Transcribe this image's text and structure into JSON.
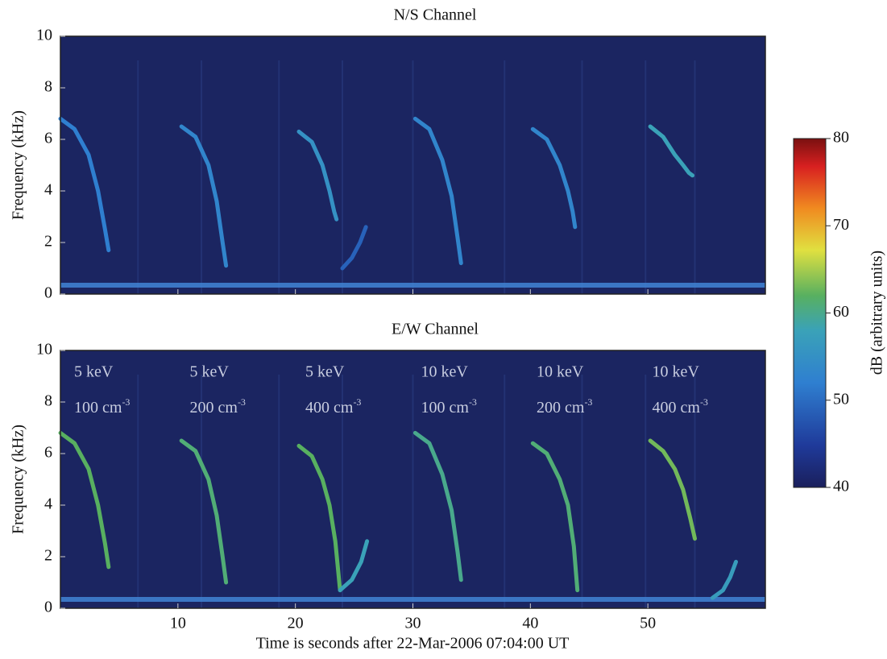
{
  "chart_data": [
    {
      "type": "spectrogram",
      "title": "N/S Channel",
      "ylabel": "Frequency (kHz)",
      "xlim": [
        0,
        60
      ],
      "ylim": [
        0,
        10
      ],
      "xticks": [
        10,
        20,
        30,
        40,
        50
      ],
      "yticks": [
        0,
        2,
        4,
        6,
        8,
        10
      ],
      "traces": [
        {
          "x": [
            0,
            1.2,
            2.4,
            3.2,
            3.8,
            4.1
          ],
          "y": [
            6.8,
            6.4,
            5.4,
            4.0,
            2.5,
            1.7
          ],
          "db": 52
        },
        {
          "x": [
            10.3,
            11.5,
            12.6,
            13.3,
            13.8,
            14.1
          ],
          "y": [
            6.5,
            6.1,
            5.0,
            3.6,
            2.0,
            1.1
          ],
          "db": 53
        },
        {
          "x": [
            20.3,
            21.4,
            22.3,
            22.9,
            23.3,
            23.5
          ],
          "y": [
            6.3,
            5.9,
            5.0,
            4.0,
            3.2,
            2.9
          ],
          "db": 55
        },
        {
          "x": [
            24.0,
            24.8,
            25.5,
            26.0
          ],
          "y": [
            1.0,
            1.4,
            2.0,
            2.6
          ],
          "db": 49
        },
        {
          "x": [
            30.2,
            31.4,
            32.5,
            33.3,
            33.8,
            34.1
          ],
          "y": [
            6.8,
            6.4,
            5.2,
            3.8,
            2.2,
            1.2
          ],
          "db": 53
        },
        {
          "x": [
            40.2,
            41.4,
            42.5,
            43.2,
            43.6,
            43.8
          ],
          "y": [
            6.4,
            6.0,
            5.0,
            4.0,
            3.2,
            2.6
          ],
          "db": 53
        },
        {
          "x": [
            50.2,
            51.3,
            52.3,
            53.0,
            53.5,
            53.8
          ],
          "y": [
            6.5,
            6.1,
            5.4,
            5.0,
            4.7,
            4.6
          ],
          "db": 58
        }
      ]
    },
    {
      "type": "spectrogram",
      "title": "E/W Channel",
      "ylabel": "Frequency (kHz)",
      "xlabel": "Time is seconds after 22-Mar-2006 07:04:00 UT",
      "xlim": [
        0,
        60
      ],
      "ylim": [
        0,
        10
      ],
      "xticks": [
        10,
        20,
        30,
        40,
        50
      ],
      "yticks": [
        0,
        2,
        4,
        6,
        8,
        10
      ],
      "annotations": [
        {
          "energy": "5 keV",
          "density": "100 cm",
          "exponent": "-3"
        },
        {
          "energy": "5 keV",
          "density": "200 cm",
          "exponent": "-3"
        },
        {
          "energy": "5 keV",
          "density": "400 cm",
          "exponent": "-3"
        },
        {
          "energy": "10 keV",
          "density": "100 cm",
          "exponent": "-3"
        },
        {
          "energy": "10 keV",
          "density": "200 cm",
          "exponent": "-3"
        },
        {
          "energy": "10 keV",
          "density": "400 cm",
          "exponent": "-3"
        }
      ],
      "traces": [
        {
          "x": [
            0,
            1.2,
            2.4,
            3.2,
            3.8,
            4.1
          ],
          "y": [
            6.8,
            6.4,
            5.4,
            4.0,
            2.5,
            1.6
          ],
          "db": 62
        },
        {
          "x": [
            10.3,
            11.5,
            12.6,
            13.3,
            13.8,
            14.1
          ],
          "y": [
            6.5,
            6.1,
            5.0,
            3.6,
            2.0,
            1.0
          ],
          "db": 61
        },
        {
          "x": [
            20.3,
            21.4,
            22.3,
            22.9,
            23.4,
            23.8
          ],
          "y": [
            6.3,
            5.9,
            5.0,
            4.0,
            2.6,
            0.7
          ],
          "db": 62
        },
        {
          "x": [
            23.8,
            24.8,
            25.6,
            26.1
          ],
          "y": [
            0.7,
            1.1,
            1.8,
            2.6
          ],
          "db": 58
        },
        {
          "x": [
            30.2,
            31.4,
            32.5,
            33.3,
            33.8,
            34.1
          ],
          "y": [
            6.8,
            6.4,
            5.2,
            3.8,
            2.2,
            1.1
          ],
          "db": 60
        },
        {
          "x": [
            40.2,
            41.4,
            42.5,
            43.2,
            43.7,
            44.0
          ],
          "y": [
            6.4,
            6.0,
            5.0,
            4.0,
            2.4,
            0.7
          ],
          "db": 61
        },
        {
          "x": [
            50.2,
            51.3,
            52.3,
            53.0,
            53.6,
            54.0
          ],
          "y": [
            6.5,
            6.1,
            5.4,
            4.6,
            3.5,
            2.7
          ],
          "db": 63
        },
        {
          "x": [
            55.5,
            56.4,
            57.0,
            57.5
          ],
          "y": [
            0.4,
            0.7,
            1.2,
            1.8
          ],
          "db": 57
        }
      ]
    }
  ],
  "colorbar": {
    "label": "dB (arbitrary units)",
    "lim": [
      40,
      80
    ],
    "ticks": [
      40,
      50,
      60,
      70,
      80
    ]
  }
}
